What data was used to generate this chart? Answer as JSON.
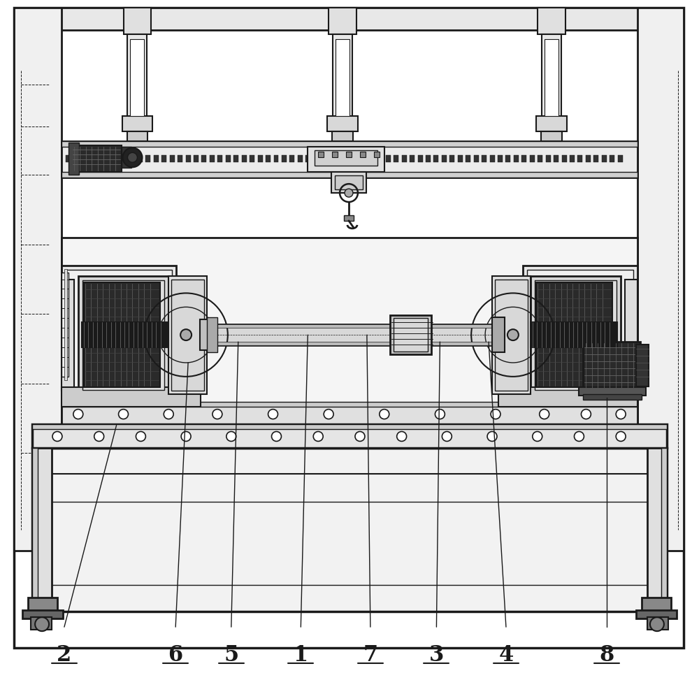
{
  "bg_color": "#ffffff",
  "lc": "#1a1a1a",
  "fig_width": 10.0,
  "fig_height": 9.63,
  "dpi": 100
}
